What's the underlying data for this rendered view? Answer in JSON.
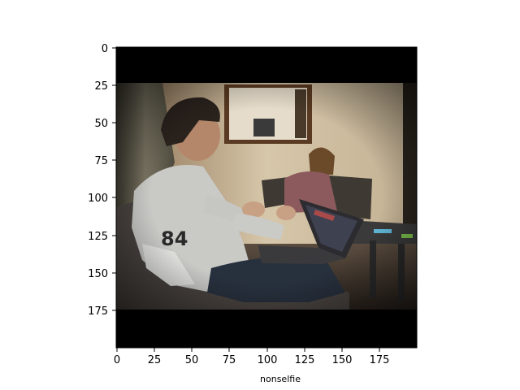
{
  "figure": {
    "xlabel": "nonselfie",
    "x_ticks": [
      "0",
      "25",
      "50",
      "75",
      "100",
      "125",
      "150",
      "175"
    ],
    "y_ticks": [
      "0",
      "25",
      "50",
      "75",
      "100",
      "125",
      "150",
      "175"
    ],
    "image": {
      "subject": "young man on couch gesturing while using laptop; woman seated at table in background",
      "jersey_number": "84"
    }
  }
}
